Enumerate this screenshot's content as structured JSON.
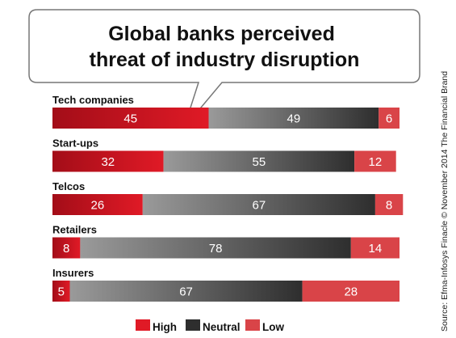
{
  "chart_data": {
    "type": "bar",
    "stacked": true,
    "orientation": "horizontal",
    "title": [
      "Global banks perceived",
      "threat of industry disruption"
    ],
    "categories": [
      "Tech companies",
      "Start-ups",
      "Telcos",
      "Retailers",
      "Insurers"
    ],
    "series": [
      {
        "name": "High",
        "values": [
          45,
          32,
          26,
          8,
          5
        ],
        "color": "#c0111f"
      },
      {
        "name": "Neutral",
        "values": [
          49,
          55,
          67,
          78,
          67
        ],
        "color": "#555555"
      },
      {
        "name": "Low",
        "values": [
          6,
          12,
          8,
          14,
          28
        ],
        "color": "#d94448"
      }
    ],
    "xlim": [
      0,
      100
    ],
    "grid": false,
    "legend_position": "bottom",
    "source": "Source: Efma-Infosys Finacle © November 2014 The Financial Brand"
  },
  "colors": {
    "high_dark": "#a30d18",
    "high_light": "#e01a26",
    "neutral_light": "#9a9a9a",
    "neutral_dark": "#2e2e2e",
    "low": "#d94448",
    "bubble_border": "#777777"
  }
}
